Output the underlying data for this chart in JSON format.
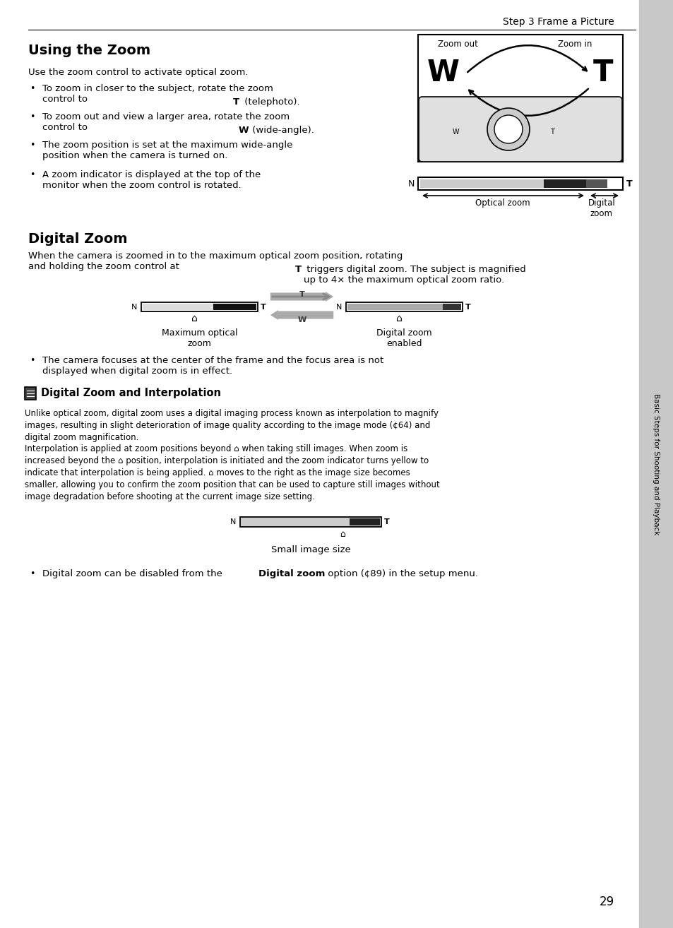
{
  "page_bg": "#ffffff",
  "sidebar_bg": "#c8c8c8",
  "sidebar_text": "Basic Steps for Shooting and Playback",
  "header_text": "Step 3 Frame a Picture",
  "section1_title": "Using the Zoom",
  "section1_intro": "Use the zoom control to activate optical zoom.",
  "section2_title": "Digital Zoom",
  "section2_bullet": "The camera focuses at the center of the frame and the focus area is not\ndisplayed when digital zoom is in effect.",
  "note_title": "Digital Zoom and Interpolation",
  "note_para1": "Unlike optical zoom, digital zoom uses a digital imaging process known as interpolation to magnify\nimages, resulting in slight deterioration of image quality according to the image mode (¢64) and\ndigital zoom magnification.",
  "note_para2": "Interpolation is applied at zoom positions beyond ⌂ when taking still images. When zoom is\nincreased beyond the ⌂ position, interpolation is initiated and the zoom indicator turns yellow to\nindicate that interpolation is being applied. ⌂ moves to the right as the image size becomes\nsmaller, allowing you to confirm the zoom position that can be used to capture still images without\nimage degradation before shooting at the current image size setting.",
  "small_image_label": "Small image size",
  "page_number": "29",
  "label_optical_zoom": "Optical zoom",
  "label_digital_zoom": "Digital\nzoom",
  "label_zoom_out": "Zoom out",
  "label_zoom_in": "Zoom in",
  "label_max_optical": "Maximum optical\nzoom",
  "label_digital_enabled": "Digital zoom\nenabled"
}
